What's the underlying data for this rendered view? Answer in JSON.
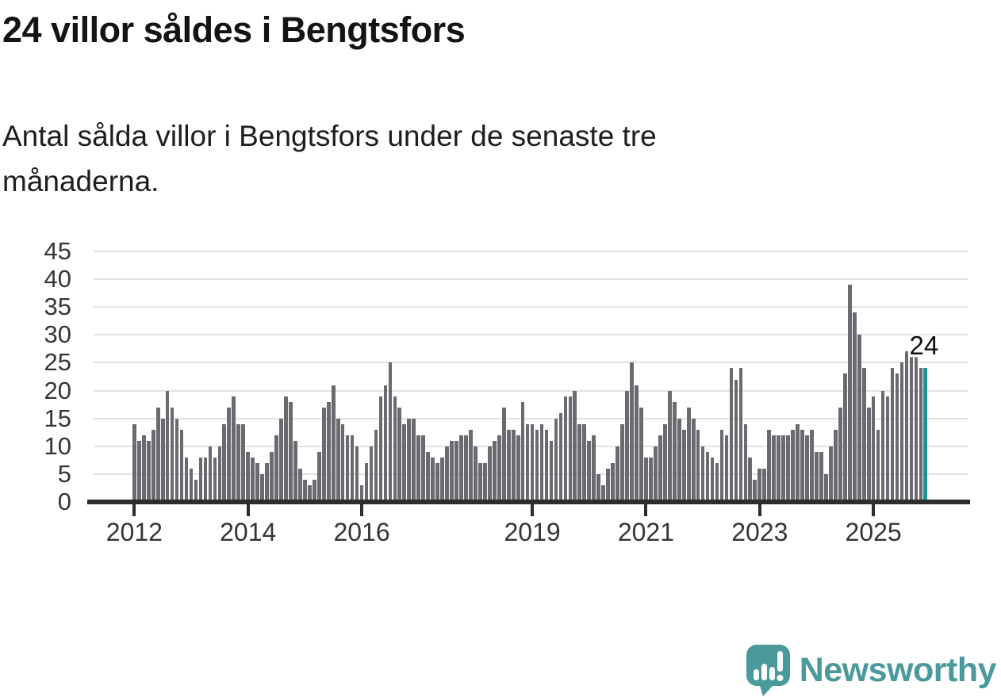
{
  "header": {
    "title": "24 villor såldes i Bengtsfors",
    "subtitle_lines": [
      "Antal sålda villor i Bengtsfors under de senaste tre",
      "månaderna."
    ]
  },
  "footer": {
    "brand": "Newsworthy",
    "logo_icon": "newsworthy-speech-bubble-bar-chart-icon"
  },
  "colors": {
    "bar": "#6a6a70",
    "highlight": "#11999a",
    "gridline": "#e2e2e2",
    "axis": "#2d2d2d",
    "tick_label": "#353535",
    "title_text": "#141414",
    "brand_teal": "#4a999b"
  },
  "chart_data": {
    "type": "bar",
    "title": "24 villor såldes i Bengtsfors",
    "subtitle": "Antal sålda villor i Bengtsfors under de senaste tre månaderna.",
    "xlabel": "",
    "ylabel": "",
    "ylim": [
      0,
      45
    ],
    "grid": true,
    "y_ticks": [
      0,
      5,
      10,
      15,
      20,
      25,
      30,
      35,
      40,
      45
    ],
    "x_tick_labels": [
      "2012",
      "2014",
      "2016",
      "2019",
      "2021",
      "2023",
      "2025"
    ],
    "x_tick_month_indices": [
      0,
      24,
      48,
      84,
      108,
      132,
      156
    ],
    "start_month": "2012-01",
    "frequency": "monthly-rolling-3-month-sum",
    "highlight_last": true,
    "last_value_label": "24",
    "values": [
      14,
      11,
      12,
      11,
      13,
      17,
      15,
      20,
      17,
      15,
      13,
      8,
      6,
      4,
      8,
      8,
      10,
      8,
      10,
      14,
      17,
      19,
      14,
      14,
      9,
      8,
      7,
      5,
      7,
      9,
      12,
      15,
      19,
      18,
      11,
      6,
      4,
      3,
      4,
      9,
      17,
      18,
      21,
      15,
      14,
      12,
      12,
      10,
      3,
      7,
      10,
      13,
      19,
      21,
      25,
      19,
      17,
      14,
      15,
      15,
      12,
      12,
      9,
      8,
      7,
      8,
      10,
      11,
      11,
      12,
      12,
      13,
      10,
      7,
      7,
      10,
      11,
      12,
      17,
      13,
      13,
      12,
      18,
      14,
      14,
      13,
      14,
      13,
      11,
      15,
      16,
      19,
      19,
      20,
      14,
      14,
      11,
      12,
      5,
      3,
      6,
      7,
      10,
      14,
      20,
      25,
      21,
      17,
      8,
      8,
      10,
      12,
      14,
      20,
      18,
      15,
      13,
      17,
      15,
      13,
      10,
      9,
      8,
      7,
      13,
      12,
      24,
      22,
      24,
      14,
      8,
      4,
      6,
      6,
      13,
      12,
      12,
      12,
      12,
      13,
      14,
      13,
      12,
      13,
      9,
      9,
      5,
      10,
      13,
      17,
      23,
      39,
      34,
      30,
      24,
      17,
      19,
      13,
      20,
      19,
      24,
      23,
      25,
      27,
      26,
      26,
      24,
      24
    ]
  }
}
